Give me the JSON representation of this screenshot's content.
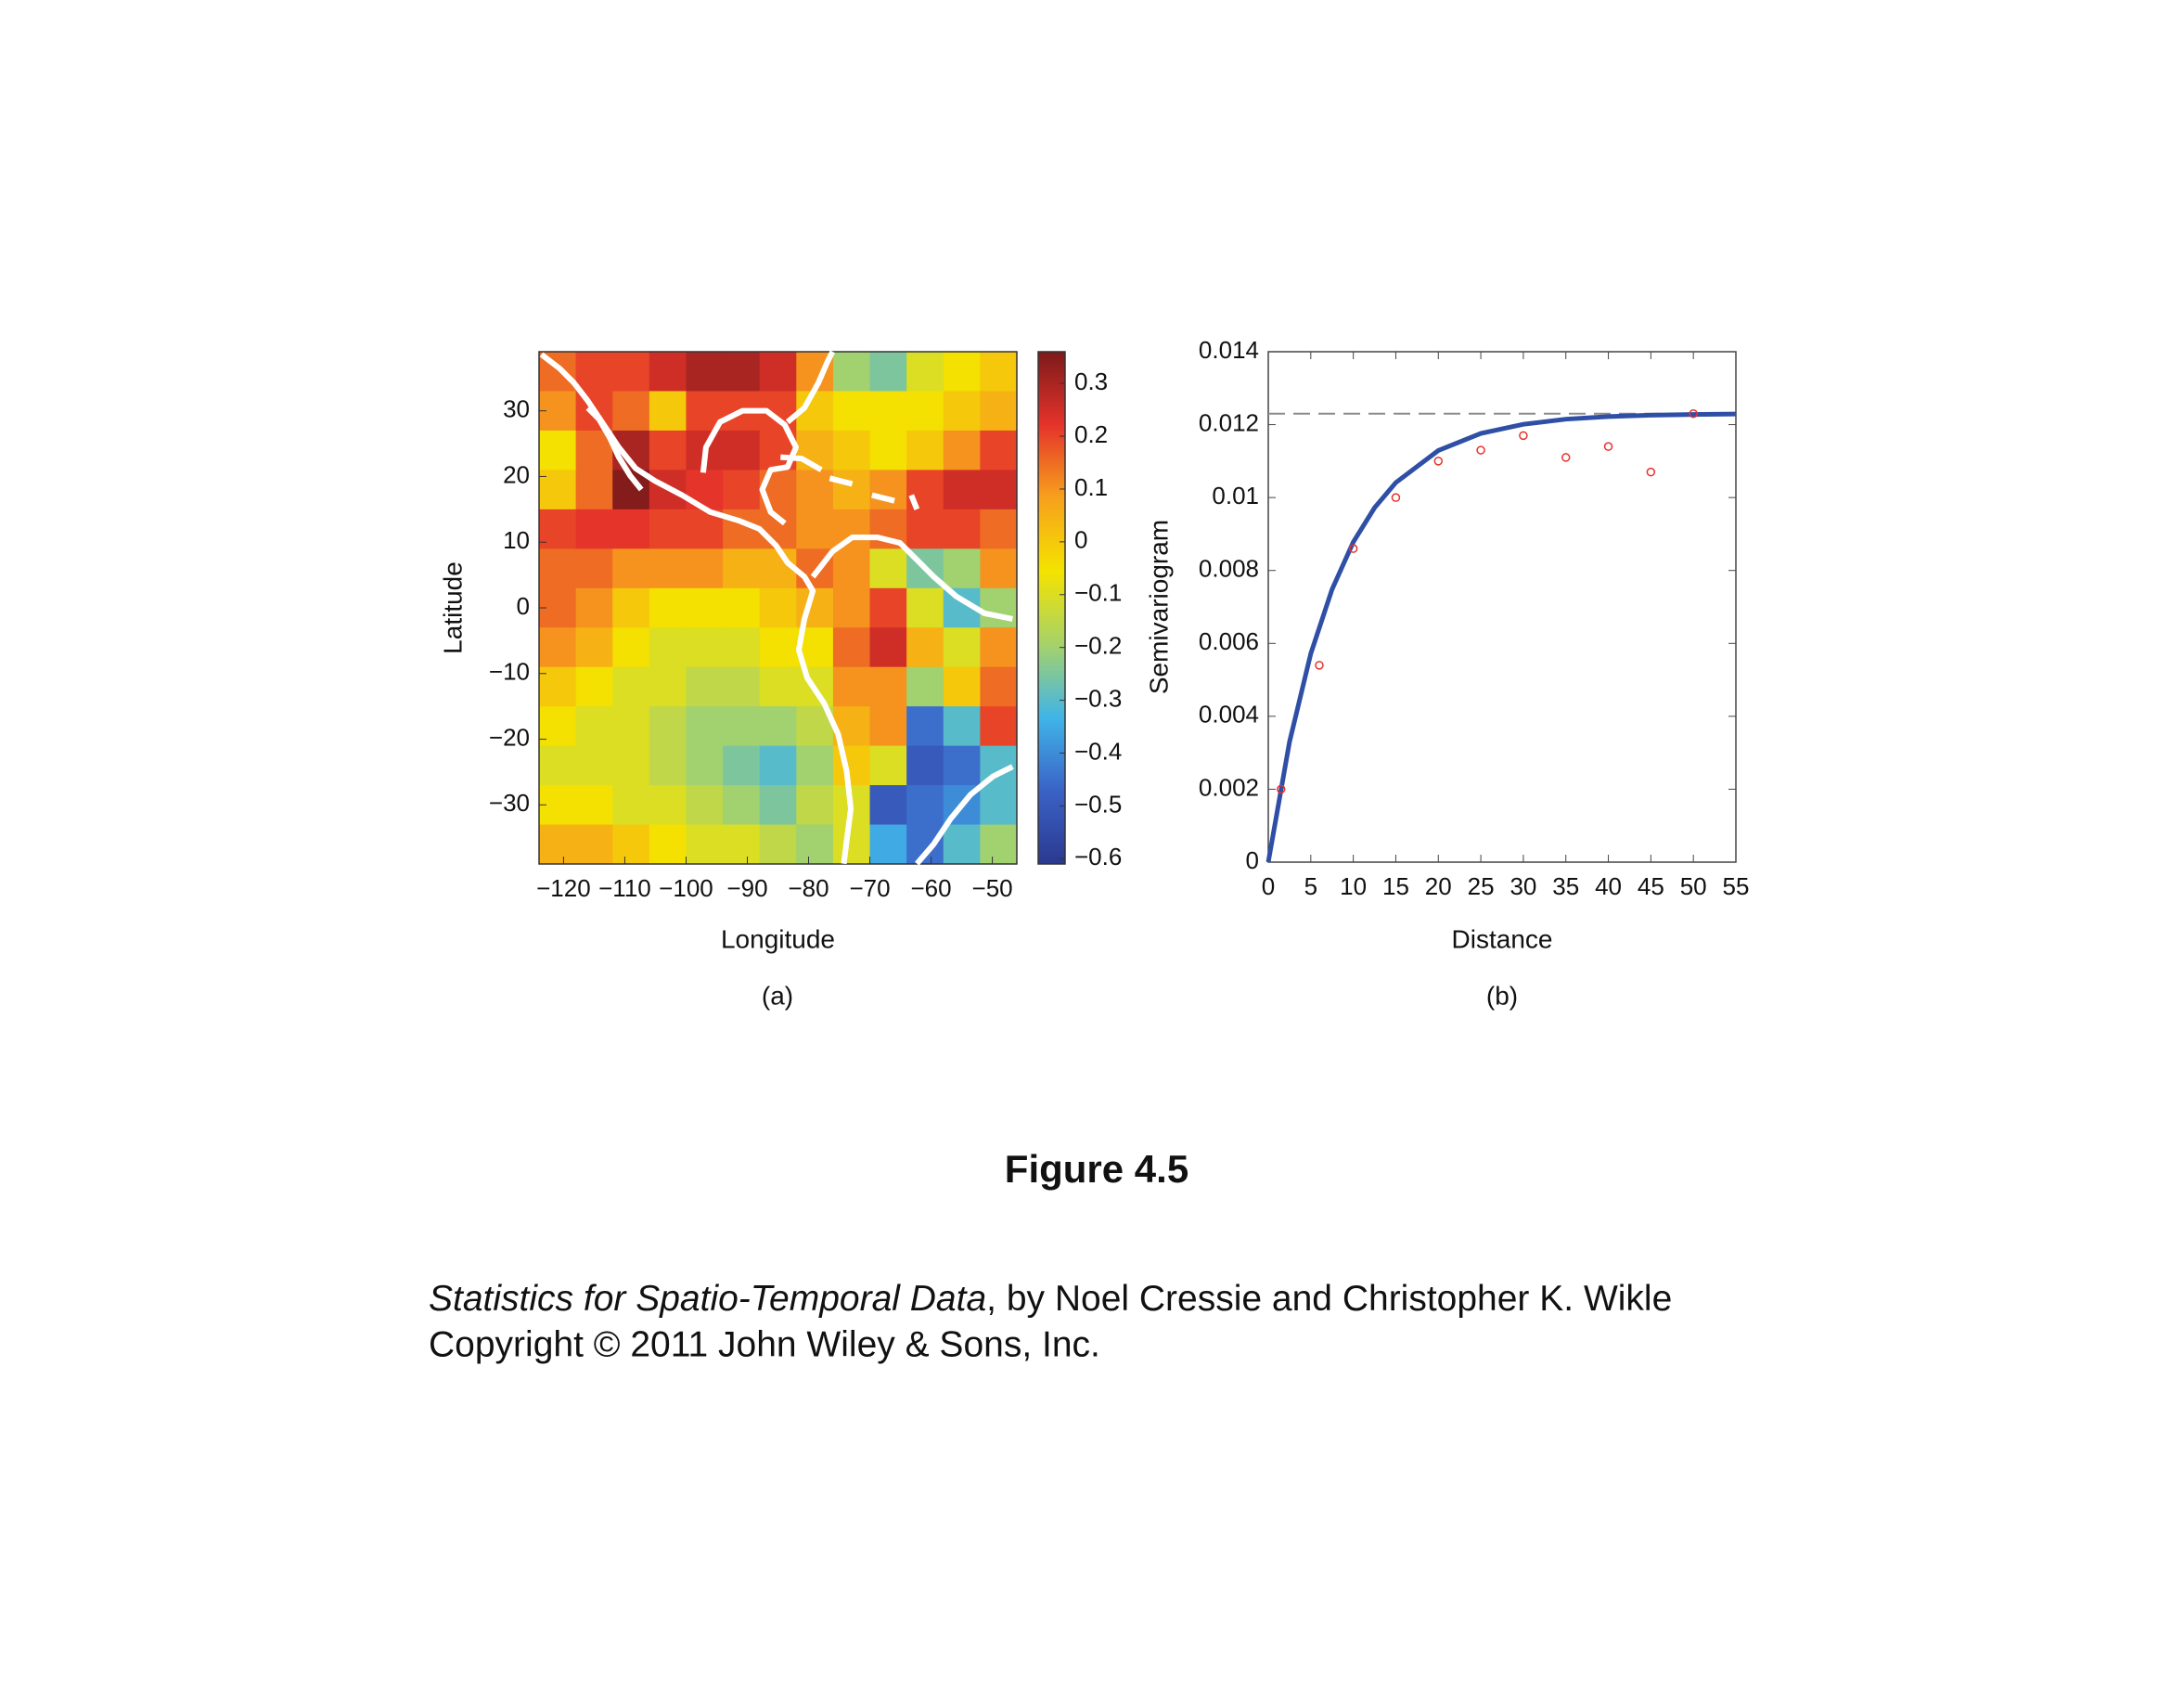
{
  "chart_data": [
    {
      "type": "heatmap",
      "xlabel": "Longitude",
      "ylabel": "Latitude",
      "panel": "(a)",
      "x": [
        -121,
        -115,
        -109,
        -103,
        -97,
        -91,
        -85,
        -79,
        -73,
        -67,
        -61,
        -55,
        -49
      ],
      "y": [
        36,
        30,
        24,
        18,
        12,
        6,
        0,
        -6,
        -12,
        -18,
        -24,
        -30,
        -36
      ],
      "z": [
        [
          0.15,
          0.2,
          0.2,
          0.25,
          0.3,
          0.3,
          0.25,
          0.1,
          -0.2,
          -0.25,
          -0.1,
          -0.05,
          0
        ],
        [
          0.1,
          0.2,
          0.15,
          0,
          0.2,
          0.2,
          0.2,
          0,
          -0.05,
          -0.05,
          -0.05,
          0,
          0.05
        ],
        [
          -0.05,
          0.15,
          0.3,
          0.2,
          0.25,
          0.25,
          0.2,
          0.05,
          0,
          -0.05,
          0,
          0.1,
          0.2
        ],
        [
          0,
          0.15,
          0.35,
          0.25,
          0.22,
          0.2,
          0.15,
          0.1,
          0.05,
          0.1,
          0.2,
          0.25,
          0.25
        ],
        [
          0.2,
          0.22,
          0.22,
          0.2,
          0.2,
          0.15,
          0.15,
          0.1,
          0.1,
          0.15,
          0.2,
          0.2,
          0.15
        ],
        [
          0.15,
          0.15,
          0.1,
          0.1,
          0.1,
          0.05,
          0.05,
          0.15,
          0.1,
          -0.1,
          -0.25,
          -0.2,
          0.1
        ],
        [
          0.15,
          0.1,
          0,
          -0.05,
          -0.05,
          -0.05,
          0,
          0.05,
          0.1,
          0.2,
          -0.1,
          -0.3,
          -0.2
        ],
        [
          0.1,
          0.05,
          -0.05,
          -0.1,
          -0.1,
          -0.1,
          -0.05,
          -0.05,
          0.15,
          0.25,
          0.05,
          -0.1,
          0.1
        ],
        [
          0,
          -0.05,
          -0.1,
          -0.1,
          -0.15,
          -0.15,
          -0.1,
          -0.1,
          0.1,
          0.1,
          -0.2,
          0,
          0.15
        ],
        [
          -0.05,
          -0.1,
          -0.1,
          -0.15,
          -0.2,
          -0.2,
          -0.2,
          -0.15,
          0.05,
          0.1,
          -0.45,
          -0.3,
          0.2
        ],
        [
          -0.1,
          -0.1,
          -0.1,
          -0.15,
          -0.2,
          -0.25,
          -0.3,
          -0.2,
          0,
          -0.1,
          -0.5,
          -0.45,
          -0.3
        ],
        [
          -0.05,
          -0.05,
          -0.1,
          -0.1,
          -0.15,
          -0.2,
          -0.25,
          -0.15,
          -0.1,
          -0.5,
          -0.45,
          -0.4,
          -0.3
        ],
        [
          0.05,
          0.05,
          0,
          -0.05,
          -0.1,
          -0.1,
          -0.15,
          -0.2,
          -0.1,
          -0.35,
          -0.45,
          -0.3,
          -0.2
        ]
      ],
      "xlim": [
        -124,
        -46
      ],
      "ylim": [
        -39,
        39
      ],
      "xticks": [
        {
          "value": -120,
          "label": "−120"
        },
        {
          "value": -110,
          "label": "−110"
        },
        {
          "value": -100,
          "label": "−100"
        },
        {
          "value": -90,
          "label": "−90"
        },
        {
          "value": -80,
          "label": "−80"
        },
        {
          "value": -70,
          "label": "−70"
        },
        {
          "value": -60,
          "label": "−60"
        },
        {
          "value": -50,
          "label": "−50"
        }
      ],
      "yticks": [
        {
          "value": -30,
          "label": "−30"
        },
        {
          "value": -20,
          "label": "−20"
        },
        {
          "value": -10,
          "label": "−10"
        },
        0,
        10,
        20,
        30
      ],
      "clim": [
        -0.61,
        0.36
      ],
      "cticks": [
        {
          "value": -0.6,
          "label": "−0.6"
        },
        {
          "value": -0.5,
          "label": "−0.5"
        },
        {
          "value": -0.4,
          "label": "−0.4"
        },
        {
          "value": -0.3,
          "label": "−0.3"
        },
        {
          "value": -0.2,
          "label": "−0.2"
        },
        {
          "value": -0.1,
          "label": "−0.1"
        },
        0,
        0.1,
        0.2,
        0.3
      ],
      "colormap": [
        "#2b3990",
        "#3a62c6",
        "#40b4e8",
        "#a6d26a",
        "#f4e300",
        "#f7a11c",
        "#e5332a",
        "#7c1a1a"
      ]
    },
    {
      "type": "scatter",
      "xlabel": "Distance",
      "ylabel": "Semivariogram",
      "panel": "(b)",
      "points": {
        "x": [
          1.5,
          6,
          10,
          15,
          20,
          25,
          30,
          35,
          40,
          45,
          50
        ],
        "y": [
          0.002,
          0.0054,
          0.0086,
          0.01,
          0.011,
          0.0113,
          0.0117,
          0.0111,
          0.0114,
          0.0107,
          0.0123
        ],
        "color": "#e8302a"
      },
      "curve": {
        "x": [
          0,
          2.5,
          5,
          7.5,
          10,
          12.5,
          15,
          20,
          25,
          30,
          35,
          40,
          45,
          50,
          55
        ],
        "y": [
          0,
          0.0033,
          0.00572,
          0.00748,
          0.00878,
          0.00972,
          0.01041,
          0.01129,
          0.01176,
          0.01201,
          0.01215,
          0.01222,
          0.01226,
          0.01228,
          0.01229
        ],
        "color": "#2f4fa6"
      },
      "sill": {
        "value": 0.0123,
        "color": "#8a8a8a"
      },
      "xlim": [
        0,
        55
      ],
      "ylim": [
        0,
        0.014
      ],
      "xticks": [
        0,
        5,
        10,
        15,
        20,
        25,
        30,
        35,
        40,
        45,
        50,
        55
      ],
      "yticks": [
        0,
        0.002,
        0.004,
        0.006,
        0.008,
        0.01,
        0.012,
        0.014
      ]
    }
  ],
  "caption": {
    "figure": "Figure 4.5",
    "book": "Statistics for Spatio-Temporal Data",
    "byline": ", by Noel Cressie and Christopher K. Wikle",
    "copyright": "Copyright © 2011 John Wiley & Sons, Inc."
  }
}
